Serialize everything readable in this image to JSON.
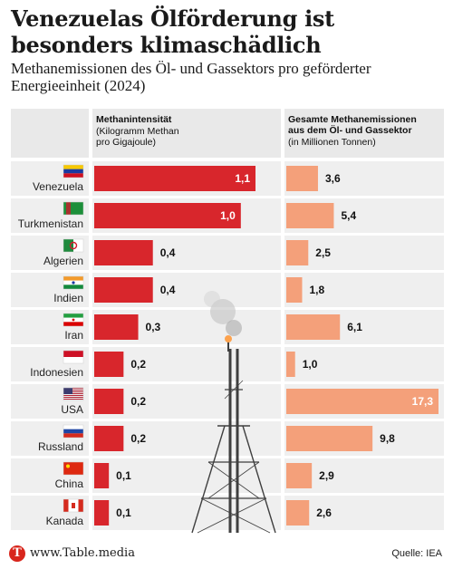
{
  "title": "Venezuelas Ölförderung ist besonders klimaschädlich",
  "subtitle": "Methanemissionen des Öl- und Gassektors pro geförderter Energieeinheit (2024)",
  "footer": {
    "logo_letter": "T",
    "site": "www.Table.media",
    "source": "Quelle: IEA"
  },
  "colors": {
    "intensity_bar": "#d8262c",
    "emission_bar": "#f4a07a",
    "row_background": "#efefef"
  },
  "chart_data": {
    "type": "bar",
    "categories": [
      "Venezuela",
      "Turkmenistan",
      "Algerien",
      "Indien",
      "Iran",
      "Indonesien",
      "USA",
      "Russland",
      "China",
      "Kanada"
    ],
    "flag_icons": [
      "flag-venezuela-icon",
      "flag-turkmenistan-icon",
      "flag-algeria-icon",
      "flag-india-icon",
      "flag-iran-icon",
      "flag-indonesia-icon",
      "flag-usa-icon",
      "flag-russia-icon",
      "flag-china-icon",
      "flag-canada-icon"
    ],
    "series": [
      {
        "name": "Methanintensität",
        "header_sub": [
          "(Kilogramm Methan",
          "pro Gigajoule)"
        ],
        "values": [
          1.1,
          1.0,
          0.4,
          0.4,
          0.3,
          0.2,
          0.2,
          0.2,
          0.1,
          0.1
        ],
        "labels": [
          "1,1",
          "1,0",
          "0,4",
          "0,4",
          "0,3",
          "0,2",
          "0,2",
          "0,2",
          "0,1",
          "0,1"
        ],
        "xlim": [
          0,
          1.1
        ]
      },
      {
        "name": "Gesamte Methanemissionen aus dem Öl- und Gassektor",
        "header_lines": [
          "Gesamte Methanemissionen",
          "aus dem Öl- und Gassektor"
        ],
        "header_sub": [
          "(in Millionen Tonnen)"
        ],
        "values": [
          3.6,
          5.4,
          2.5,
          1.8,
          6.1,
          1.0,
          17.3,
          9.8,
          2.9,
          2.6
        ],
        "labels": [
          "3,6",
          "5,4",
          "2,5",
          "1,8",
          "6,1",
          "1,0",
          "17,3",
          "9,8",
          "2,9",
          "2,6"
        ],
        "xlim": [
          0,
          17.3
        ]
      }
    ]
  }
}
